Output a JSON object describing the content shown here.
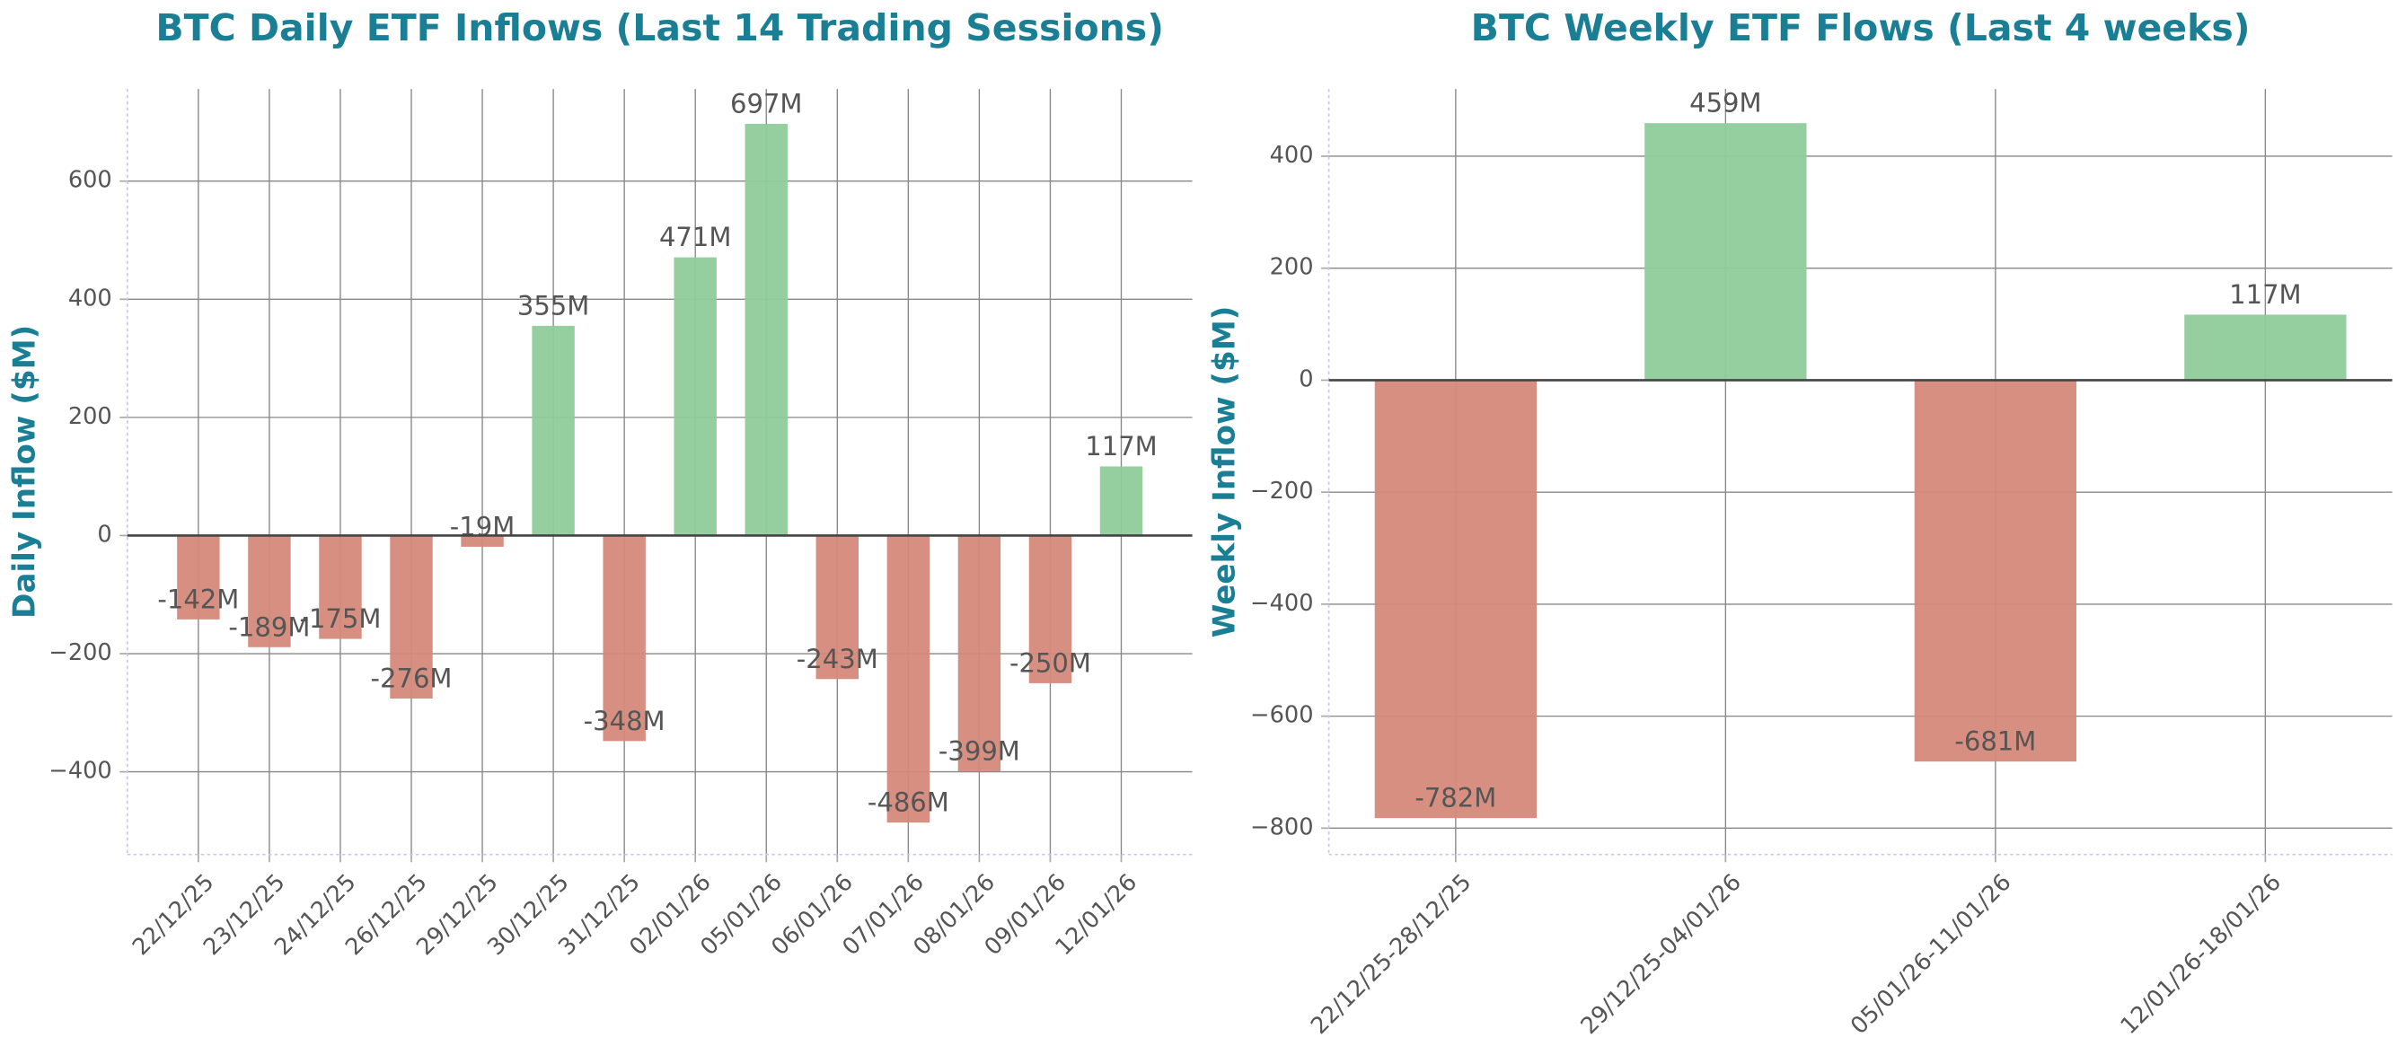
{
  "chart_data": [
    {
      "type": "bar",
      "title": "BTC Daily ETF Inflows (Last 14 Trading Sessions)",
      "y_label": "Daily Inflow ($M)",
      "categories": [
        "22/12/25",
        "23/12/25",
        "24/12/25",
        "26/12/25",
        "29/12/25",
        "30/12/25",
        "31/12/25",
        "02/01/26",
        "05/01/26",
        "06/01/26",
        "07/01/26",
        "08/01/26",
        "09/01/26",
        "12/01/26"
      ],
      "values": [
        -142,
        -189,
        -175,
        -276,
        -19,
        355,
        -348,
        471,
        697,
        -243,
        -486,
        -399,
        -250,
        117
      ],
      "value_labels": [
        "-142M",
        "-189M",
        "-175M",
        "-276M",
        "-19M",
        "355M",
        "-348M",
        "471M",
        "697M",
        "-243M",
        "-486M",
        "-399M",
        "-250M",
        "117M"
      ],
      "positive_color": "#8fcc9a",
      "negative_color": "#d4897a",
      "ylim": [
        -540,
        756
      ],
      "yticks": [
        {
          "value": -400,
          "label": "−400"
        },
        {
          "value": -200,
          "label": "−200"
        },
        0,
        200,
        400,
        600
      ],
      "grid": true
    },
    {
      "type": "bar",
      "title": "BTC Weekly ETF Flows (Last 4 weeks)",
      "y_label": "Weekly Inflow ($M)",
      "categories": [
        "22/12/25-28/12/25",
        "29/12/25-04/01/26",
        "05/01/26-11/01/26",
        "12/01/26-18/01/26"
      ],
      "values": [
        -782,
        459,
        -681,
        117
      ],
      "value_labels": [
        "-782M",
        "459M",
        "-681M",
        "117M"
      ],
      "positive_color": "#8fcc9a",
      "negative_color": "#d4897a",
      "ylim": [
        -847,
        520
      ],
      "yticks": [
        {
          "value": -800,
          "label": "−800"
        },
        {
          "value": -600,
          "label": "−600"
        },
        {
          "value": -400,
          "label": "−400"
        },
        {
          "value": -200,
          "label": "−200"
        },
        0,
        200,
        400
      ],
      "grid": true
    }
  ]
}
